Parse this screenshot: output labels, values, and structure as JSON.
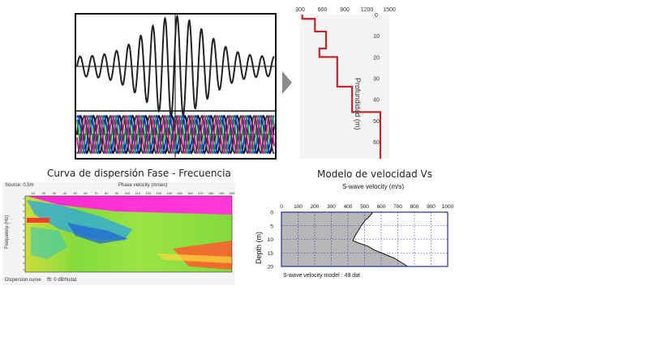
{
  "captions": {
    "dispersion": "Curva de dispersión Fase - Frecuencia",
    "velocity_model": "Modelo de velocidad Vs"
  },
  "top_profile": {
    "x_ticks": [
      "300",
      "600",
      "900",
      "1200",
      "1500"
    ],
    "y_ticks": [
      "0",
      "10",
      "20",
      "30",
      "40",
      "50",
      "60"
    ],
    "y_label": "Profundidad (m)",
    "line_color": "#c0262a",
    "steps": [
      {
        "depth_from": 0,
        "depth_to": 2,
        "velocity": 330
      },
      {
        "depth_from": 2,
        "depth_to": 8,
        "velocity": 500
      },
      {
        "depth_from": 8,
        "depth_to": 16,
        "velocity": 650
      },
      {
        "depth_from": 16,
        "depth_to": 20,
        "velocity": 560
      },
      {
        "depth_from": 20,
        "depth_to": 34,
        "velocity": 800
      },
      {
        "depth_from": 34,
        "depth_to": 46,
        "velocity": 1000
      },
      {
        "depth_from": 46,
        "depth_to": 68,
        "velocity": 1380
      }
    ]
  },
  "wave_panel": {
    "colors": [
      "#000000",
      "#1a3cff",
      "#11a83a",
      "#e0179a",
      "#444444"
    ]
  },
  "dispersion_image": {
    "x_title": "Phase velocity (m/sec)",
    "x_ticks": [
      "10",
      "20",
      "30",
      "40",
      "50",
      "60",
      "70",
      "80",
      "90",
      "100",
      "110",
      "120",
      "130",
      "140",
      "150",
      "160",
      "170",
      "180",
      "190",
      "200"
    ],
    "y_title": "Frequency (Hz)",
    "source_label": "Source: 0.5m",
    "footer_left": "Dispersion curve",
    "footer_right": "fft: 0 dB/Nstat"
  },
  "swave_chart": {
    "title": "S-wave velocity (m/s)",
    "x_ticks": [
      "0",
      "100",
      "200",
      "300",
      "400",
      "500",
      "600",
      "700",
      "800",
      "900",
      "1000"
    ],
    "y_label": "Depth (m)",
    "y_ticks": [
      "0",
      "5",
      "10",
      "15",
      "20"
    ],
    "footer": "S-wave velocity model : 49.dat",
    "profile": [
      {
        "depth": 0,
        "velocity": 550
      },
      {
        "depth": 1.5,
        "velocity": 530
      },
      {
        "depth": 3,
        "velocity": 505
      },
      {
        "depth": 5,
        "velocity": 480
      },
      {
        "depth": 7,
        "velocity": 460
      },
      {
        "depth": 9,
        "velocity": 440
      },
      {
        "depth": 10.5,
        "velocity": 430
      },
      {
        "depth": 11.5,
        "velocity": 470
      },
      {
        "depth": 12.5,
        "velocity": 520
      },
      {
        "depth": 14,
        "velocity": 560
      },
      {
        "depth": 15.5,
        "velocity": 620
      },
      {
        "depth": 17,
        "velocity": 680
      },
      {
        "depth": 18.5,
        "velocity": 720
      },
      {
        "depth": 20,
        "velocity": 760
      }
    ],
    "fill_color": "#b7b7b7",
    "frame_color": "#2a2aa0"
  }
}
